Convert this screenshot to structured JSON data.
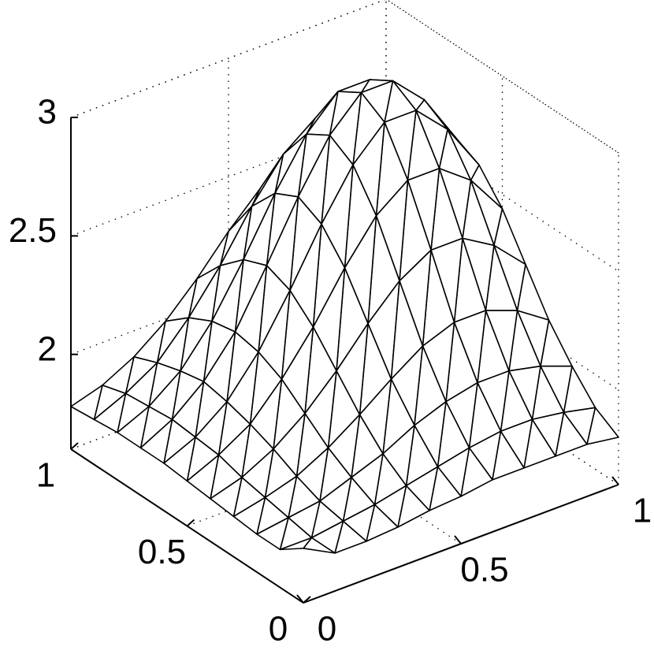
{
  "chart_data": {
    "type": "mesh",
    "color": "#000000",
    "grid": true,
    "x": [
      0,
      0.1,
      0.2,
      0.3,
      0.4,
      0.5,
      0.6,
      0.7,
      0.8,
      0.9,
      1
    ],
    "y": [
      0,
      0.1,
      0.2,
      0.3,
      0.4,
      0.5,
      0.6,
      0.7,
      0.8,
      0.9,
      1
    ],
    "z": [
      [
        1.83,
        1.76,
        1.76,
        1.77,
        1.79,
        1.8,
        1.82,
        1.82,
        1.82,
        1.82,
        1.8
      ],
      [
        1.76,
        1.76,
        1.78,
        1.8,
        1.83,
        1.86,
        1.89,
        1.91,
        1.91,
        1.89,
        1.86
      ],
      [
        1.76,
        1.78,
        1.8,
        1.85,
        1.9,
        1.97,
        2.02,
        2.05,
        2.05,
        2.02,
        1.97
      ],
      [
        1.77,
        1.8,
        1.84,
        1.91,
        2.0,
        2.1,
        2.19,
        2.24,
        2.24,
        2.19,
        2.1
      ],
      [
        1.78,
        1.82,
        1.89,
        1.99,
        2.12,
        2.27,
        2.4,
        2.48,
        2.48,
        2.4,
        2.27
      ],
      [
        1.79,
        1.85,
        1.93,
        2.07,
        2.24,
        2.44,
        2.61,
        2.71,
        2.71,
        2.61,
        2.44
      ],
      [
        1.8,
        1.86,
        1.96,
        2.12,
        2.33,
        2.56,
        2.76,
        2.89,
        2.89,
        2.76,
        2.56
      ],
      [
        1.8,
        1.87,
        1.98,
        2.14,
        2.37,
        2.61,
        2.82,
        2.95,
        2.95,
        2.82,
        2.61
      ],
      [
        1.8,
        1.86,
        1.96,
        2.12,
        2.33,
        2.56,
        2.76,
        2.89,
        2.89,
        2.76,
        2.56
      ],
      [
        1.79,
        1.85,
        1.93,
        2.07,
        2.24,
        2.44,
        2.61,
        2.71,
        2.71,
        2.61,
        2.44
      ],
      [
        1.78,
        1.82,
        1.89,
        1.99,
        2.12,
        2.27,
        2.4,
        2.48,
        2.48,
        2.4,
        2.27
      ]
    ],
    "xlim": [
      0,
      1
    ],
    "ylim": [
      0,
      1
    ],
    "zlim": [
      1.6,
      3
    ],
    "xticks": [
      0,
      0.5,
      1
    ],
    "yticks": [
      0,
      0.5,
      1
    ],
    "zticks": [
      2,
      2.5,
      3
    ]
  }
}
